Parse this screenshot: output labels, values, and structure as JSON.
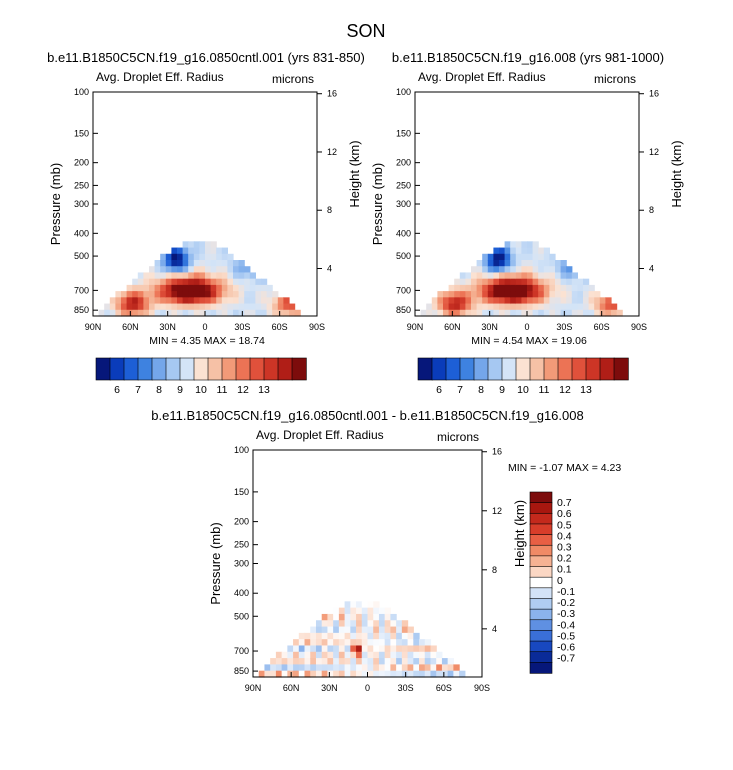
{
  "figure": {
    "title": "SON"
  },
  "chart_data": [
    {
      "type": "heatmap",
      "title": "b.e11.B1850C5CN.f19_g16.0850cntl.001 (yrs 831-850)",
      "left_label": "Avg. Droplet Eff. Radius",
      "right_label": "microns",
      "ylabel": "Pressure (mb)",
      "y2label": "Height (km)",
      "x_ticks": [
        "90N",
        "60N",
        "30N",
        "0",
        "30S",
        "60S",
        "90S"
      ],
      "y_ticks": [
        "100",
        "150",
        "200",
        "250",
        "300",
        "400",
        "500",
        "700",
        "850"
      ],
      "y2_ticks": [
        "16",
        "12",
        "8",
        "4"
      ],
      "stats_text": "MIN =   4.35   MAX = 18.74",
      "min": 4.35,
      "max": 18.74,
      "colorbar": {
        "orientation": "horizontal",
        "labels": [
          "6",
          "7",
          "8",
          "9",
          "10",
          "11",
          "12",
          "13"
        ],
        "colors": [
          "#06177a",
          "#0a3cba",
          "#1d5fd6",
          "#3e82e0",
          "#74a6ea",
          "#a6c8f2",
          "#d4e4f7",
          "#fbe2d2",
          "#f6c1a6",
          "#f29a78",
          "#ec7355",
          "#e0513b",
          "#cd3526",
          "#b01e17",
          "#7d0c0c"
        ]
      }
    },
    {
      "type": "heatmap",
      "title": "b.e11.B1850C5CN.f19_g16.008 (yrs 981-1000)",
      "left_label": "Avg. Droplet Eff. Radius",
      "right_label": "microns",
      "ylabel": "Pressure (mb)",
      "y2label": "Height (km)",
      "x_ticks": [
        "90N",
        "60N",
        "30N",
        "0",
        "30S",
        "60S",
        "90S"
      ],
      "y_ticks": [
        "100",
        "150",
        "200",
        "250",
        "300",
        "400",
        "500",
        "700",
        "850"
      ],
      "y2_ticks": [
        "16",
        "12",
        "8",
        "4"
      ],
      "stats_text": "MIN =   4.54   MAX = 19.06",
      "min": 4.54,
      "max": 19.06,
      "colorbar": {
        "orientation": "horizontal",
        "labels": [
          "6",
          "7",
          "8",
          "9",
          "10",
          "11",
          "12",
          "13"
        ],
        "colors": [
          "#06177a",
          "#0a3cba",
          "#1d5fd6",
          "#3e82e0",
          "#74a6ea",
          "#a6c8f2",
          "#d4e4f7",
          "#fbe2d2",
          "#f6c1a6",
          "#f29a78",
          "#ec7355",
          "#e0513b",
          "#cd3526",
          "#b01e17",
          "#7d0c0c"
        ]
      }
    },
    {
      "type": "heatmap",
      "title": "b.e11.B1850C5CN.f19_g16.0850cntl.001 - b.e11.B1850C5CN.f19_g16.008",
      "left_label": "Avg. Droplet Eff. Radius",
      "right_label": "microns",
      "ylabel": "Pressure (mb)",
      "y2label": "Height (km)",
      "x_ticks": [
        "90N",
        "60N",
        "30N",
        "0",
        "30S",
        "60S",
        "90S"
      ],
      "y_ticks": [
        "100",
        "150",
        "200",
        "250",
        "300",
        "400",
        "500",
        "700",
        "850"
      ],
      "y2_ticks": [
        "16",
        "12",
        "8",
        "4"
      ],
      "stats_text": "MIN = -1.07  MAX =  4.23",
      "min": -1.07,
      "max": 4.23,
      "colorbar": {
        "orientation": "vertical",
        "labels": [
          "0.7",
          "0.6",
          "0.5",
          "0.4",
          "0.3",
          "0.2",
          "0.1",
          "0",
          "-0.1",
          "-0.2",
          "-0.3",
          "-0.4",
          "-0.5",
          "-0.6",
          "-0.7"
        ],
        "colors": [
          "#7d0c0c",
          "#a8170f",
          "#c4291c",
          "#d83d2a",
          "#e85f44",
          "#f08a66",
          "#f6b293",
          "#fbd7c4",
          "#ffffff",
          "#d3e3f8",
          "#b0cdf2",
          "#8bb3ec",
          "#5f90e2",
          "#3a6fd8",
          "#1848c0",
          "#0a2b98",
          "#06177a"
        ]
      }
    }
  ]
}
